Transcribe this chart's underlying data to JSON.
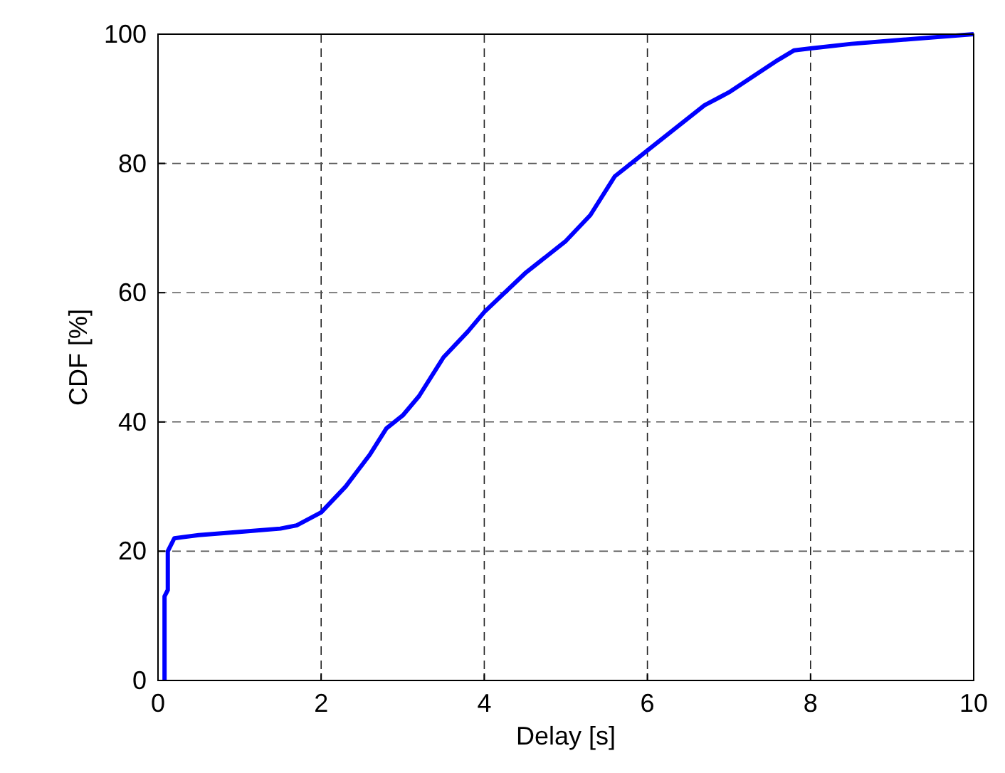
{
  "chart_data": {
    "type": "line",
    "xlabel": "Delay [s]",
    "ylabel": "CDF [%]",
    "xlim": [
      0,
      10
    ],
    "xticks": [
      0,
      2,
      4,
      6,
      8,
      10
    ],
    "ylim": [
      0,
      100
    ],
    "yticks": [
      0,
      20,
      40,
      60,
      80,
      100
    ],
    "grid": true,
    "marker": "none",
    "line_style": "solid",
    "series": [
      {
        "color": "#0000ff",
        "x": [
          0.08,
          0.08,
          0.12,
          0.12,
          0.2,
          0.5,
          1,
          1.5,
          1.7,
          2,
          2.3,
          2.6,
          2.8,
          3.0,
          3.2,
          3.5,
          3.8,
          4,
          4.5,
          5,
          5.3,
          5.6,
          5.8,
          6,
          6.3,
          6.7,
          7,
          7.3,
          7.6,
          7.8,
          8,
          8.5,
          9,
          9.5,
          10
        ],
        "values": [
          0,
          13,
          14,
          20,
          22,
          22.5,
          23,
          23.5,
          24,
          26,
          30,
          35,
          39,
          41,
          44,
          50,
          54,
          57,
          63,
          68,
          72,
          78,
          80,
          82,
          85,
          89,
          91,
          93.5,
          96,
          97.5,
          97.8,
          98.5,
          99,
          99.5,
          100
        ]
      }
    ]
  }
}
